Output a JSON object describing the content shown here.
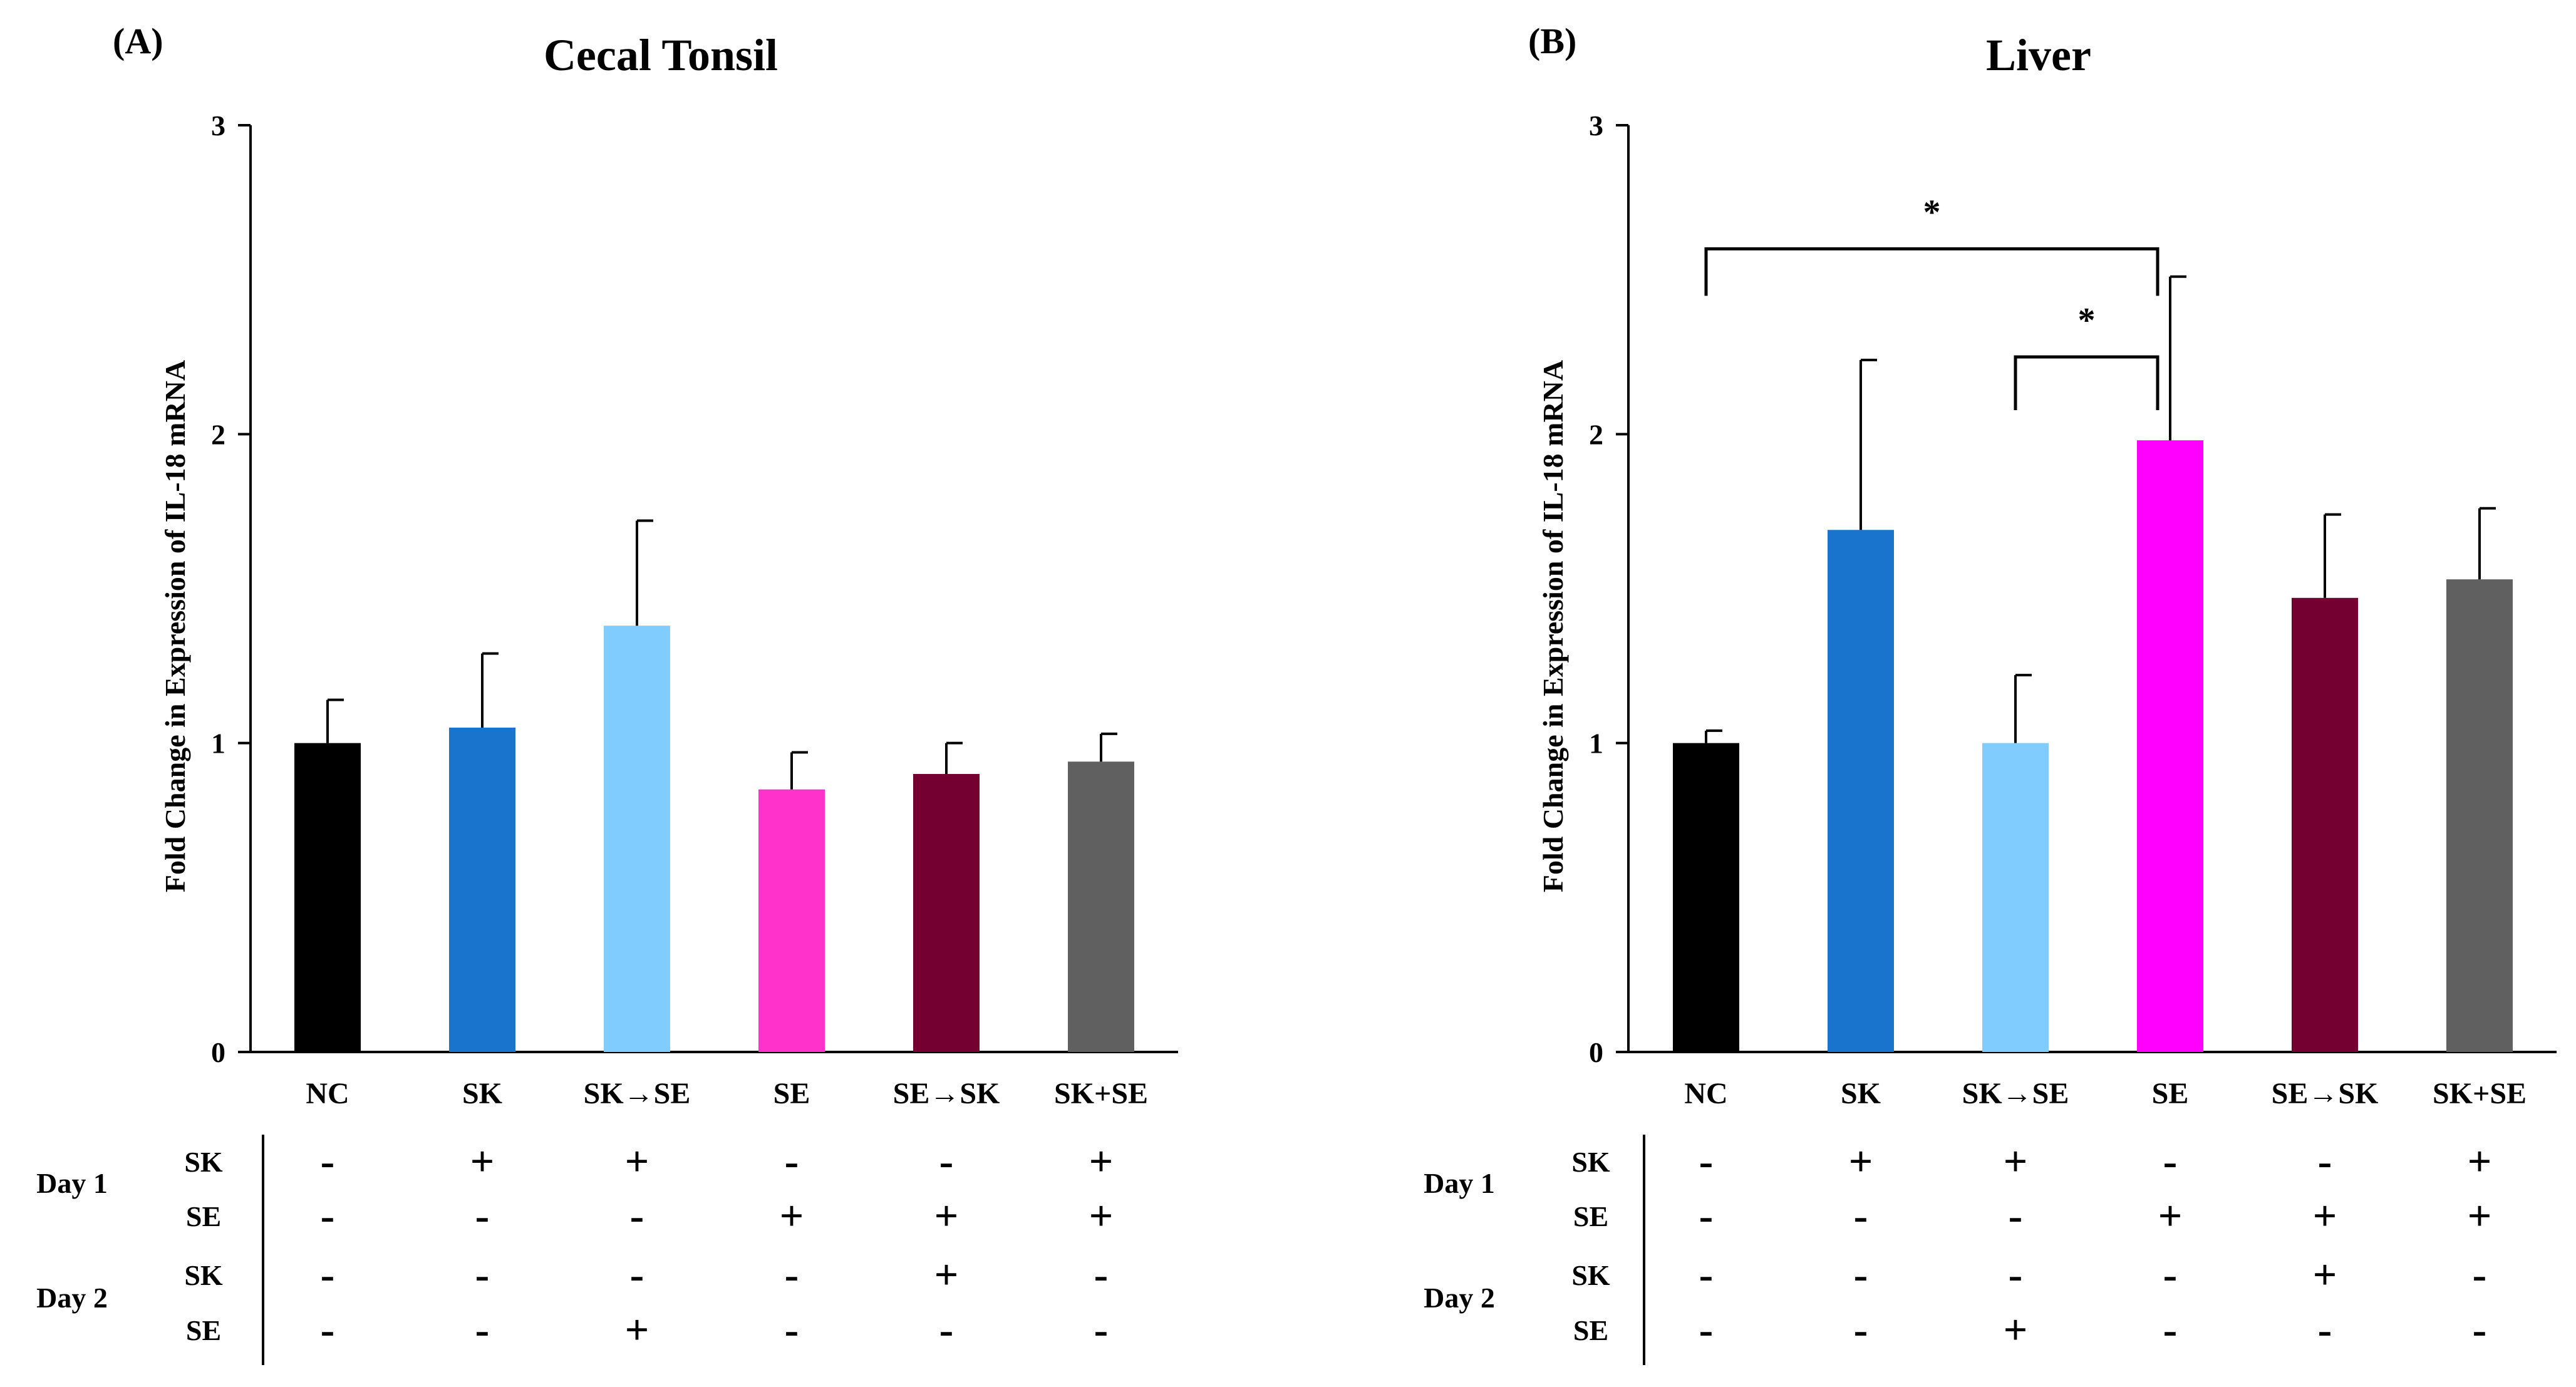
{
  "chart_data": [
    {
      "type": "bar",
      "panel_label": "(A)",
      "title": "Cecal Tonsil",
      "ylabel": "Fold Change in Expression of IL-18 mRNA",
      "xlabel": "",
      "ylim": [
        0,
        3
      ],
      "yticks": [
        "0",
        "1",
        "2",
        "3"
      ],
      "categories": [
        "NC",
        "SK",
        "SK→SE",
        "SE",
        "SE→SK",
        "SK+SE"
      ],
      "values": [
        1.0,
        1.05,
        1.38,
        0.85,
        0.9,
        0.94
      ],
      "errors": [
        0.14,
        0.24,
        0.34,
        0.12,
        0.1,
        0.09
      ],
      "colors": [
        "#000000",
        "#1874cd",
        "#80ccff",
        "#ff33cc",
        "#730030",
        "#606060"
      ],
      "significance": [],
      "treatment_table": {
        "day_labels": [
          "Day 1",
          "Day 2"
        ],
        "row_labels": [
          "SK",
          "SE",
          "SK",
          "SE"
        ],
        "rows": [
          [
            "-",
            "+",
            "+",
            "-",
            "-",
            "+"
          ],
          [
            "-",
            "-",
            "-",
            "+",
            "+",
            "+"
          ],
          [
            "-",
            "-",
            "-",
            "-",
            "+",
            "-"
          ],
          [
            "-",
            "-",
            "+",
            "-",
            "-",
            "-"
          ]
        ]
      }
    },
    {
      "type": "bar",
      "panel_label": "(B)",
      "title": "Liver",
      "ylabel": "Fold Change in Expression of IL-18 mRNA",
      "xlabel": "",
      "ylim": [
        0,
        3
      ],
      "yticks": [
        "0",
        "1",
        "2",
        "3"
      ],
      "categories": [
        "NC",
        "SK",
        "SK→SE",
        "SE",
        "SE→SK",
        "SK+SE"
      ],
      "values": [
        1.0,
        1.69,
        1.0,
        1.98,
        1.47,
        1.53
      ],
      "errors": [
        0.04,
        0.55,
        0.22,
        0.53,
        0.27,
        0.23
      ],
      "colors": [
        "#000000",
        "#1874cd",
        "#80ccff",
        "#ff00ff",
        "#730030",
        "#606060"
      ],
      "significance": [
        {
          "from": 0,
          "to": 3,
          "label": "*",
          "level": 2.6
        },
        {
          "from": 2,
          "to": 3,
          "label": "*",
          "level": 2.25
        }
      ],
      "treatment_table": {
        "day_labels": [
          "Day 1",
          "Day 2"
        ],
        "row_labels": [
          "SK",
          "SE",
          "SK",
          "SE"
        ],
        "rows": [
          [
            "-",
            "+",
            "+",
            "-",
            "-",
            "+"
          ],
          [
            "-",
            "-",
            "-",
            "+",
            "+",
            "+"
          ],
          [
            "-",
            "-",
            "-",
            "-",
            "+",
            "-"
          ],
          [
            "-",
            "-",
            "+",
            "-",
            "-",
            "-"
          ]
        ]
      }
    }
  ]
}
